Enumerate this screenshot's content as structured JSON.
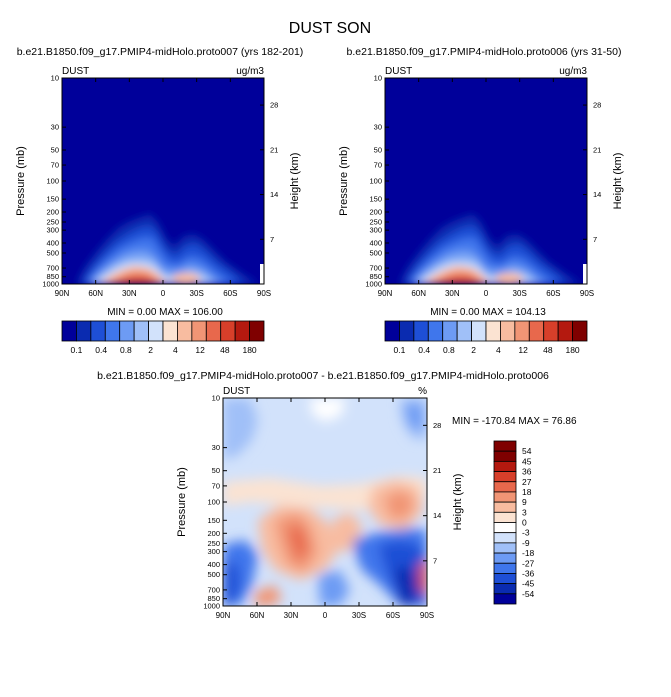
{
  "page_title": "DUST SON",
  "chart_data": [
    {
      "type": "heatmap",
      "title": "b.e21.B1850.f09_g17.PMIP4-midHolo.proto007 (yrs 182-201)",
      "left_label": "DUST",
      "units": "ug/m3",
      "ylabel": "Pressure (mb)",
      "ylabel_right": "Height (km)",
      "x_ticks": [
        "90N",
        "60N",
        "30N",
        "0",
        "30S",
        "60S",
        "90S"
      ],
      "y_ticks": [
        "10",
        "30",
        "50",
        "70",
        "100",
        "150",
        "200",
        "250",
        "300",
        "400",
        "500",
        "700",
        "850",
        "1000"
      ],
      "height_ticks": [
        "28",
        "21",
        "14",
        "7"
      ],
      "stats": "MIN =   0.00  MAX = 106.00",
      "colorbar_labels": [
        "0.1",
        "0.4",
        "0.8",
        "2",
        "4",
        "12",
        "48",
        "180"
      ],
      "colorbar_colors": [
        "#00009a",
        "#0a2bb0",
        "#1e4fd6",
        "#3f76ec",
        "#6d9bf4",
        "#a0c0f8",
        "#d2e2fb",
        "#fbe3d2",
        "#f8bca0",
        "#f19575",
        "#e8684c",
        "#d73f2a",
        "#b4190f",
        "#7f0000"
      ]
    },
    {
      "type": "heatmap",
      "title": "b.e21.B1850.f09_g17.PMIP4-midHolo.proto006 (yrs 31-50)",
      "left_label": "DUST",
      "units": "ug/m3",
      "ylabel": "Pressure (mb)",
      "ylabel_right": "Height (km)",
      "x_ticks": [
        "90N",
        "60N",
        "30N",
        "0",
        "30S",
        "60S",
        "90S"
      ],
      "y_ticks": [
        "10",
        "30",
        "50",
        "70",
        "100",
        "150",
        "200",
        "250",
        "300",
        "400",
        "500",
        "700",
        "850",
        "1000"
      ],
      "height_ticks": [
        "28",
        "21",
        "14",
        "7"
      ],
      "stats": "MIN =   0.00  MAX = 104.13",
      "colorbar_labels": [
        "0.1",
        "0.4",
        "0.8",
        "2",
        "4",
        "12",
        "48",
        "180"
      ],
      "colorbar_colors": [
        "#00009a",
        "#0a2bb0",
        "#1e4fd6",
        "#3f76ec",
        "#6d9bf4",
        "#a0c0f8",
        "#d2e2fb",
        "#fbe3d2",
        "#f8bca0",
        "#f19575",
        "#e8684c",
        "#d73f2a",
        "#b4190f",
        "#7f0000"
      ]
    },
    {
      "type": "heatmap",
      "title": "b.e21.B1850.f09_g17.PMIP4-midHolo.proto007 - b.e21.B1850.f09_g17.PMIP4-midHolo.proto006",
      "left_label": "DUST",
      "units": "%",
      "ylabel": "Pressure (mb)",
      "ylabel_right": "Height (km)",
      "x_ticks": [
        "90N",
        "60N",
        "30N",
        "0",
        "30S",
        "60S",
        "90S"
      ],
      "y_ticks": [
        "10",
        "30",
        "50",
        "70",
        "100",
        "150",
        "200",
        "250",
        "300",
        "400",
        "500",
        "700",
        "850",
        "1000"
      ],
      "height_ticks": [
        "28",
        "21",
        "14",
        "7"
      ],
      "stats": "MIN = -170.84  MAX =  76.86",
      "colorbar_labels": [
        "54",
        "45",
        "36",
        "27",
        "18",
        "9",
        "3",
        "0",
        "-3",
        "-9",
        "-18",
        "-27",
        "-36",
        "-45",
        "-54"
      ],
      "colorbar_colors": [
        "#7f0000",
        "#b4190f",
        "#d73f2a",
        "#e8684c",
        "#f19575",
        "#f8bca0",
        "#fbe3d2",
        "#ffffff",
        "#d2e2fb",
        "#a0c0f8",
        "#6d9bf4",
        "#3f76ec",
        "#1e4fd6",
        "#0a2bb0",
        "#00009a"
      ]
    }
  ]
}
